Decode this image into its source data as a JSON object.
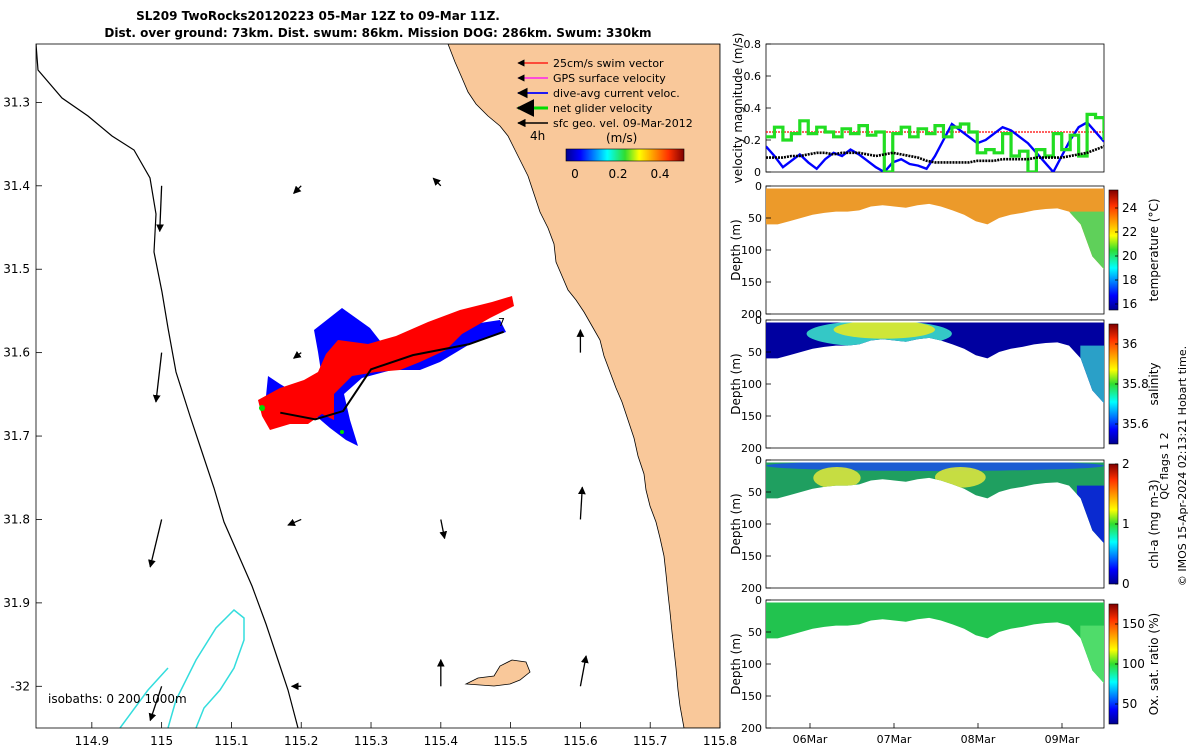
{
  "header": {
    "title_line1": "SL209 TwoRocks20120223 05-Mar 12Z to 09-Mar 11Z.",
    "title_line2": "Dist. over ground: 73km. Dist. swum: 86km. Mission DOG: 286km. Swum: 330km"
  },
  "map": {
    "x_ticks": [
      "114.9",
      "115",
      "115.1",
      "115.2",
      "115.3",
      "115.4",
      "115.5",
      "115.6",
      "115.7",
      "115.8"
    ],
    "y_ticks": [
      "31.3",
      "31.4",
      "31.5",
      "31.6",
      "31.7",
      "31.8",
      "31.9",
      "-32"
    ],
    "legend": [
      {
        "label": "25cm/s swim vector",
        "color": "#ff0000"
      },
      {
        "label": "GPS surface velocity",
        "color": "#ff00ff"
      },
      {
        "label": "dive-avg current veloc.",
        "color": "#0000ff"
      },
      {
        "label": "net glider velocity",
        "color": "#00dd00"
      },
      {
        "label": "sfc geo. vel. 09-Mar-2012",
        "color": "#000000"
      }
    ],
    "arrow_label": "4h",
    "colorbar_unit": "(m/s)",
    "colorbar_ticks": [
      "0",
      "0.2",
      "0.4"
    ],
    "isobaths_label": "isobaths: 0   200  1000m",
    "track_end_label": "7",
    "land_color": "#f9c89a",
    "isobath_1000_color": "#33dddd"
  },
  "timeseries": {
    "ylabel": "velocity magnitude (m/s)",
    "y_ticks": [
      "0",
      "0.2",
      "0.4",
      "0.6",
      "0.8"
    ]
  },
  "sections": [
    {
      "cbar_label": "temperature (°C)",
      "cbar_ticks": [
        "16",
        "18",
        "20",
        "22",
        "24"
      ],
      "ylabel": "Depth (m)",
      "depth_ticks": [
        "0",
        "50",
        "100",
        "150",
        "200"
      ]
    },
    {
      "cbar_label": "salinity",
      "cbar_ticks": [
        "35.6",
        "35.8",
        "36"
      ],
      "ylabel": "Depth (m)",
      "depth_ticks": [
        "0",
        "50",
        "100",
        "150",
        "200"
      ]
    },
    {
      "cbar_label": "chl-a (mg m-3)",
      "cbar_ticks": [
        "0",
        "1",
        "2"
      ],
      "ylabel": "Depth (m)",
      "depth_ticks": [
        "0",
        "50",
        "100",
        "150",
        "200"
      ]
    },
    {
      "cbar_label": "Ox. sat. ratio (%)",
      "cbar_ticks": [
        "50",
        "100",
        "150"
      ],
      "ylabel": "Depth (m)",
      "depth_ticks": [
        "0",
        "50",
        "100",
        "150",
        "200"
      ]
    }
  ],
  "salinity_qc_label": "QC flags 1  2",
  "time_ticks": [
    "06Mar",
    "07Mar",
    "08Mar",
    "09Mar"
  ],
  "footer_note": "© IMOS 15-Apr-2024 02:13:21 Hobart time.",
  "chart_data": [
    {
      "type": "scatter",
      "title": "SL209 TwoRocks20120223 05-Mar 12Z to 09-Mar 11Z.",
      "subtitle": "Dist. over ground: 73km. Dist. swum: 86km. Mission DOG: 286km. Swum: 330km",
      "xlabel": "",
      "ylabel": "",
      "xlim": [
        114.82,
        115.8
      ],
      "ylim": [
        31.23,
        32.05
      ],
      "y_reversed": true,
      "track": {
        "x": [
          115.17,
          115.22,
          115.26,
          115.3,
          115.36,
          115.44,
          115.49
        ],
        "y": [
          31.672,
          31.68,
          31.67,
          31.62,
          31.603,
          31.59,
          31.575
        ]
      },
      "current_arrows": [
        {
          "x": 115.0,
          "y": 31.4,
          "u": -0.01,
          "v": -0.24
        },
        {
          "x": 115.0,
          "y": 31.6,
          "u": -0.03,
          "v": -0.26
        },
        {
          "x": 115.0,
          "y": 31.8,
          "u": -0.06,
          "v": -0.25
        },
        {
          "x": 115.0,
          "y": 32.0,
          "u": -0.06,
          "v": -0.18
        },
        {
          "x": 115.2,
          "y": 31.4,
          "u": -0.04,
          "v": -0.04
        },
        {
          "x": 115.2,
          "y": 31.6,
          "u": -0.04,
          "v": -0.03
        },
        {
          "x": 115.2,
          "y": 31.8,
          "u": -0.07,
          "v": -0.03
        },
        {
          "x": 115.2,
          "y": 32.0,
          "u": -0.05,
          "v": 0.0
        },
        {
          "x": 115.4,
          "y": 31.4,
          "u": -0.04,
          "v": 0.04
        },
        {
          "x": 115.4,
          "y": 31.8,
          "u": 0.02,
          "v": -0.1
        },
        {
          "x": 115.4,
          "y": 32.0,
          "u": 0.0,
          "v": 0.14
        },
        {
          "x": 115.6,
          "y": 31.6,
          "u": 0.0,
          "v": 0.12
        },
        {
          "x": 115.6,
          "y": 31.8,
          "u": 0.01,
          "v": 0.17
        },
        {
          "x": 115.6,
          "y": 32.0,
          "u": 0.03,
          "v": 0.16
        }
      ]
    },
    {
      "type": "line",
      "ylabel": "velocity magnitude (m/s)",
      "ylim": [
        0,
        0.8
      ],
      "x": [
        0.0,
        0.1,
        0.2,
        0.3,
        0.4,
        0.5,
        0.6,
        0.7,
        0.8,
        0.9,
        1.0,
        1.1,
        1.2,
        1.3,
        1.4,
        1.5,
        1.6,
        1.7,
        1.8,
        1.9,
        2.0,
        2.1,
        2.2,
        2.3,
        2.4,
        2.5,
        2.6,
        2.7,
        2.8,
        2.9,
        3.0,
        3.1,
        3.2,
        3.3,
        3.4,
        3.5,
        3.6,
        3.7,
        3.8,
        3.9,
        4.0
      ],
      "series": [
        {
          "name": "25cm/s swim vector",
          "values": [
            0.25,
            0.25,
            0.25,
            0.25,
            0.25,
            0.25,
            0.25,
            0.25,
            0.25,
            0.25,
            0.25,
            0.25,
            0.25,
            0.25,
            0.25,
            0.25,
            0.25,
            0.25,
            0.25,
            0.25,
            0.25,
            0.25,
            0.25,
            0.25,
            0.25,
            0.25,
            0.25,
            0.25,
            0.25,
            0.25,
            0.25,
            0.25,
            0.25,
            0.25,
            0.25,
            0.25,
            0.25,
            0.25,
            0.25,
            0.25,
            0.25
          ]
        },
        {
          "name": "dive-avg current veloc.",
          "values": [
            0.16,
            0.1,
            0.03,
            0.07,
            0.11,
            0.06,
            0.02,
            0.08,
            0.12,
            0.1,
            0.14,
            0.11,
            0.07,
            0.03,
            0.0,
            0.06,
            0.08,
            0.05,
            0.04,
            0.02,
            0.1,
            0.2,
            0.3,
            0.26,
            0.22,
            0.18,
            0.2,
            0.24,
            0.28,
            0.26,
            0.22,
            0.18,
            0.12,
            0.06,
            0.0,
            0.1,
            0.2,
            0.28,
            0.31,
            0.25,
            0.19
          ]
        },
        {
          "name": "net glider velocity",
          "values": [
            0.22,
            0.28,
            0.2,
            0.24,
            0.32,
            0.24,
            0.28,
            0.25,
            0.22,
            0.27,
            0.24,
            0.29,
            0.23,
            0.25,
            0.0,
            0.24,
            0.28,
            0.22,
            0.27,
            0.24,
            0.29,
            0.22,
            0.28,
            0.3,
            0.25,
            0.12,
            0.14,
            0.12,
            0.24,
            0.1,
            0.13,
            0.0,
            0.14,
            0.1,
            0.24,
            0.14,
            0.23,
            0.1,
            0.36,
            0.34,
            0.2
          ]
        },
        {
          "name": "sfc geo. vel. 09-Mar-2012",
          "values": [
            0.09,
            0.09,
            0.09,
            0.1,
            0.1,
            0.11,
            0.12,
            0.12,
            0.11,
            0.12,
            0.12,
            0.12,
            0.11,
            0.1,
            0.11,
            0.12,
            0.11,
            0.1,
            0.09,
            0.07,
            0.06,
            0.06,
            0.06,
            0.06,
            0.06,
            0.07,
            0.07,
            0.07,
            0.08,
            0.08,
            0.08,
            0.08,
            0.09,
            0.09,
            0.09,
            0.09,
            0.1,
            0.11,
            0.12,
            0.14,
            0.16
          ]
        }
      ]
    },
    {
      "type": "heatmap",
      "ylabel": "Depth (m)",
      "zlabel": "temperature (°C)",
      "zlim": [
        15.5,
        25.5
      ],
      "ylim": [
        200,
        0
      ],
      "x_categories": [
        "06Mar",
        "07Mar",
        "08Mar",
        "09Mar"
      ],
      "bottom_depth_profile": [
        60,
        60,
        55,
        50,
        45,
        42,
        40,
        40,
        38,
        32,
        30,
        32,
        34,
        30,
        28,
        32,
        38,
        45,
        55,
        60,
        50,
        45,
        42,
        38,
        36,
        35,
        40,
        60,
        110,
        130
      ],
      "surface_value": 23.5,
      "deep_value": 19
    },
    {
      "type": "heatmap",
      "ylabel": "Depth (m)",
      "zlabel": "salinity",
      "zlim": [
        35.5,
        36.1
      ],
      "ylim": [
        200,
        0
      ],
      "x_categories": [
        "06Mar",
        "07Mar",
        "08Mar",
        "09Mar"
      ]
    },
    {
      "type": "heatmap",
      "ylabel": "Depth (m)",
      "zlabel": "chl-a (mg m-3)",
      "zlim": [
        0,
        2
      ],
      "ylim": [
        200,
        0
      ],
      "x_categories": [
        "06Mar",
        "07Mar",
        "08Mar",
        "09Mar"
      ]
    },
    {
      "type": "heatmap",
      "ylabel": "Depth (m)",
      "zlabel": "Ox. sat. ratio (%)",
      "zlim": [
        25,
        175
      ],
      "ylim": [
        200,
        0
      ],
      "x_categories": [
        "06Mar",
        "07Mar",
        "08Mar",
        "09Mar"
      ]
    }
  ]
}
